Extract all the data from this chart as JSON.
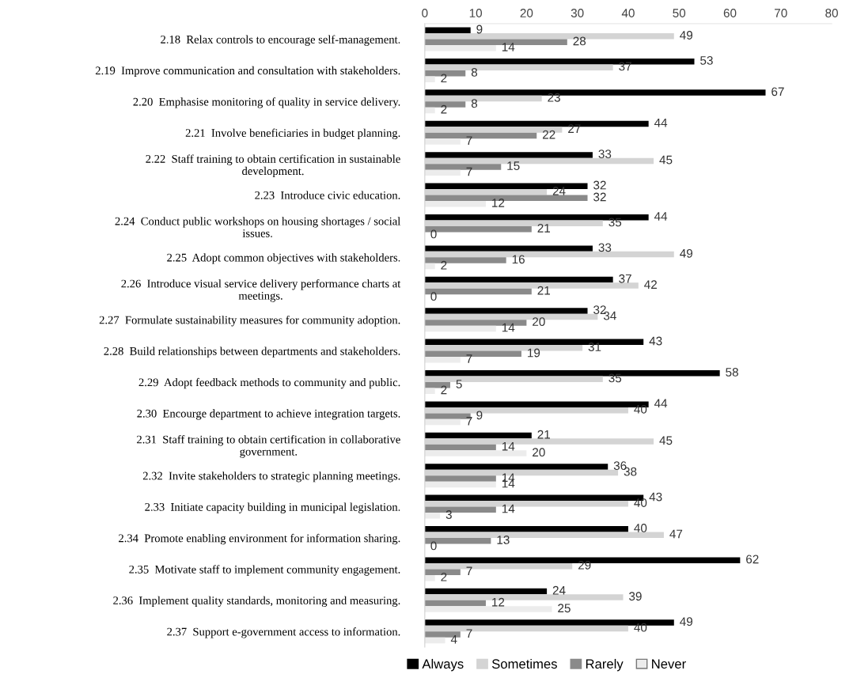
{
  "chart_data": {
    "type": "bar",
    "orientation": "horizontal",
    "data_labels": true,
    "legend": "bottom",
    "grid": false,
    "categories": [
      "2.18  Relax controls to encourage self-management.",
      "2.19  Improve communication and consultation with stakeholders.",
      "2.20  Emphasise monitoring of quality in service delivery.",
      "2.21  Involve beneficiaries in budget planning.",
      "2.22  Staff training to obtain certification in sustainable\ndevelopment.",
      "2.23  Introduce civic education.",
      "2.24  Conduct public workshops on housing shortages / social\nissues.",
      "2.25  Adopt common objectives with stakeholders.",
      "2.26  Introduce visual service delivery performance charts at\nmeetings.",
      "2.27  Formulate sustainability measures for community adoption.",
      "2.28  Build relationships between departments and stakeholders.",
      "2.29  Adopt feedback methods to community and public.",
      "2.30  Encourge department to achieve integration targets.",
      "2.31  Staff training to obtain certification in collaborative\ngovernment.",
      "2.32  Invite stakeholders to strategic planning meetings.",
      "2.33  Initiate capacity building in municipal legislation.",
      "2.34  Promote enabling environment for information sharing.",
      "2.35  Motivate staff to implement community engagement.",
      "2.36  Implement quality standards, monitoring and measuring.",
      "2.37  Support e-government access to information."
    ],
    "series": [
      {
        "name": "Always",
        "color": "#000000",
        "values": [
          9,
          53,
          67,
          44,
          33,
          32,
          44,
          33,
          37,
          32,
          43,
          58,
          44,
          21,
          36,
          43,
          40,
          62,
          24,
          49
        ]
      },
      {
        "name": "Sometimes",
        "color": "#d4d4d4",
        "values": [
          49,
          37,
          23,
          27,
          45,
          24,
          35,
          49,
          42,
          34,
          31,
          35,
          40,
          45,
          38,
          40,
          47,
          29,
          39,
          40
        ]
      },
      {
        "name": "Rarely",
        "color": "#8a8a8a",
        "values": [
          28,
          8,
          8,
          22,
          15,
          32,
          21,
          16,
          21,
          20,
          19,
          5,
          9,
          14,
          14,
          14,
          13,
          7,
          12,
          7
        ]
      },
      {
        "name": "Never",
        "color": "#ececec",
        "values": [
          14,
          2,
          2,
          7,
          7,
          12,
          0,
          2,
          0,
          14,
          7,
          2,
          7,
          20,
          14,
          3,
          0,
          2,
          25,
          4
        ]
      }
    ],
    "xlim": [
      0,
      80
    ],
    "xticks": [
      0,
      10,
      20,
      30,
      40,
      50,
      60,
      70,
      80
    ]
  }
}
